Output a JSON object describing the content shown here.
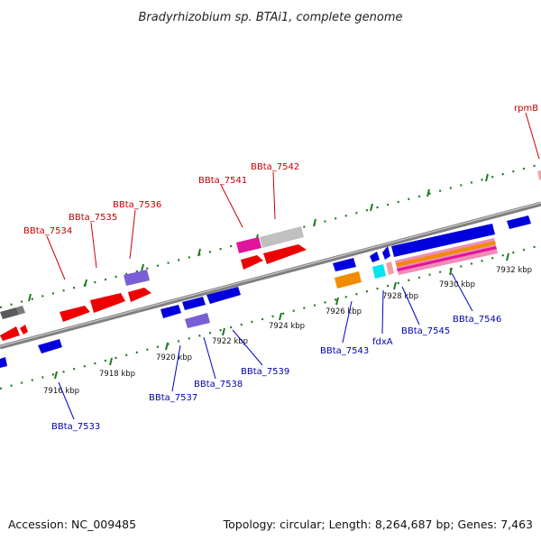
{
  "title": "Bradyrhizobium sp. BTAi1, complete genome",
  "footer": {
    "accession": "Accession: NC_009485",
    "summary": "Topology: circular; Length: 8,264,687 bp; Genes: 7,463"
  },
  "colors": {
    "forward_label": "#c00000",
    "reverse_label": "#0000b0",
    "backbone": "#8c8c8c",
    "tick": "#1e7a1e"
  },
  "scale_ticks": [
    "7916 kbp",
    "7918 kbp",
    "7920 kbp",
    "7922 kbp",
    "7924 kbp",
    "7926 kbp",
    "7928 kbp",
    "7930 kbp",
    "7932 kbp"
  ],
  "forward_labels": [
    "BBta_7534",
    "BBta_7535",
    "BBta_7536",
    "BBta_7541",
    "BBta_7542",
    "rpmB"
  ],
  "reverse_labels": [
    "BBta_7533",
    "BBta_7537",
    "BBta_7538",
    "BBta_7539",
    "BBta_7543",
    "fdxA",
    "BBta_7545",
    "BBta_7546"
  ]
}
